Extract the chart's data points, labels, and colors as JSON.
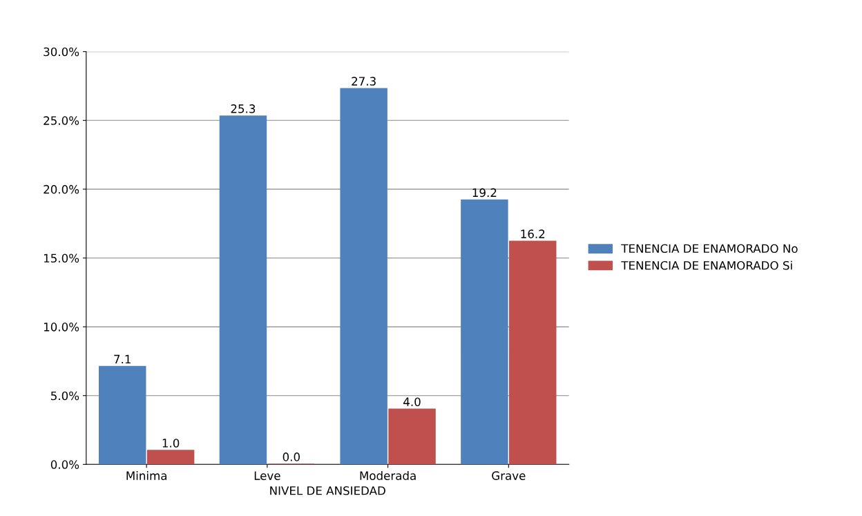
{
  "chart_data": {
    "type": "bar",
    "xlabel": "NIVEL DE ANSIEDAD",
    "categories": [
      "Minima",
      "Leve",
      "Moderada",
      "Grave"
    ],
    "series": [
      {
        "name": "TENENCIA DE ENAMORADO No",
        "color": "#4f81bd",
        "values": [
          7.1,
          25.3,
          27.3,
          19.2
        ],
        "value_labels": [
          "7.1",
          "25.3",
          "27.3",
          "19.2"
        ]
      },
      {
        "name": "TENENCIA DE ENAMORADO Si",
        "color": "#c0504d",
        "values": [
          1.0,
          0.0,
          4.0,
          16.2
        ],
        "value_labels": [
          "1.0",
          "0.0",
          "4.0",
          "16.2"
        ]
      }
    ],
    "ylim": [
      0,
      30
    ],
    "yticks": [
      {
        "value": 0,
        "label": "0.0%"
      },
      {
        "value": 5,
        "label": "5.0%"
      },
      {
        "value": 10,
        "label": "10.0%"
      },
      {
        "value": 15,
        "label": "15.0%"
      },
      {
        "value": 20,
        "label": "20.0%"
      },
      {
        "value": 25,
        "label": "25.0%"
      },
      {
        "value": 30,
        "label": "30.0%"
      }
    ],
    "grid": "y",
    "legend": "right"
  }
}
